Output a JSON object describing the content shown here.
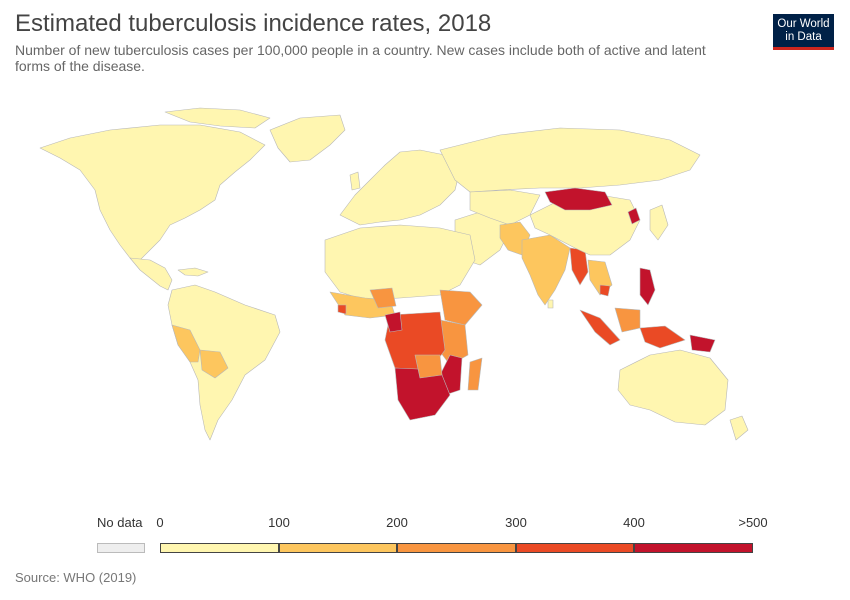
{
  "header": {
    "title": "Estimated tuberculosis incidence rates, 2018",
    "subtitle": "Number of new tuberculosis cases per 100,000 people in a country. New cases include both of active and latent forms of the disease.",
    "logo_line1": "Our World",
    "logo_line2": "in Data"
  },
  "legend": {
    "no_data_label": "No data",
    "no_data_color": "#eeeeee",
    "ticks": [
      "0",
      "100",
      "200",
      "300",
      "400",
      ">500"
    ],
    "bins": [
      {
        "color": "#fff6b0"
      },
      {
        "color": "#fdc65e"
      },
      {
        "color": "#f89540"
      },
      {
        "color": "#ea4a25"
      },
      {
        "color": "#c2132c"
      }
    ]
  },
  "map": {
    "ocean_color": "#ffffff",
    "border_color": "#bbbbbb"
  },
  "source": "Source: WHO (2019)"
}
